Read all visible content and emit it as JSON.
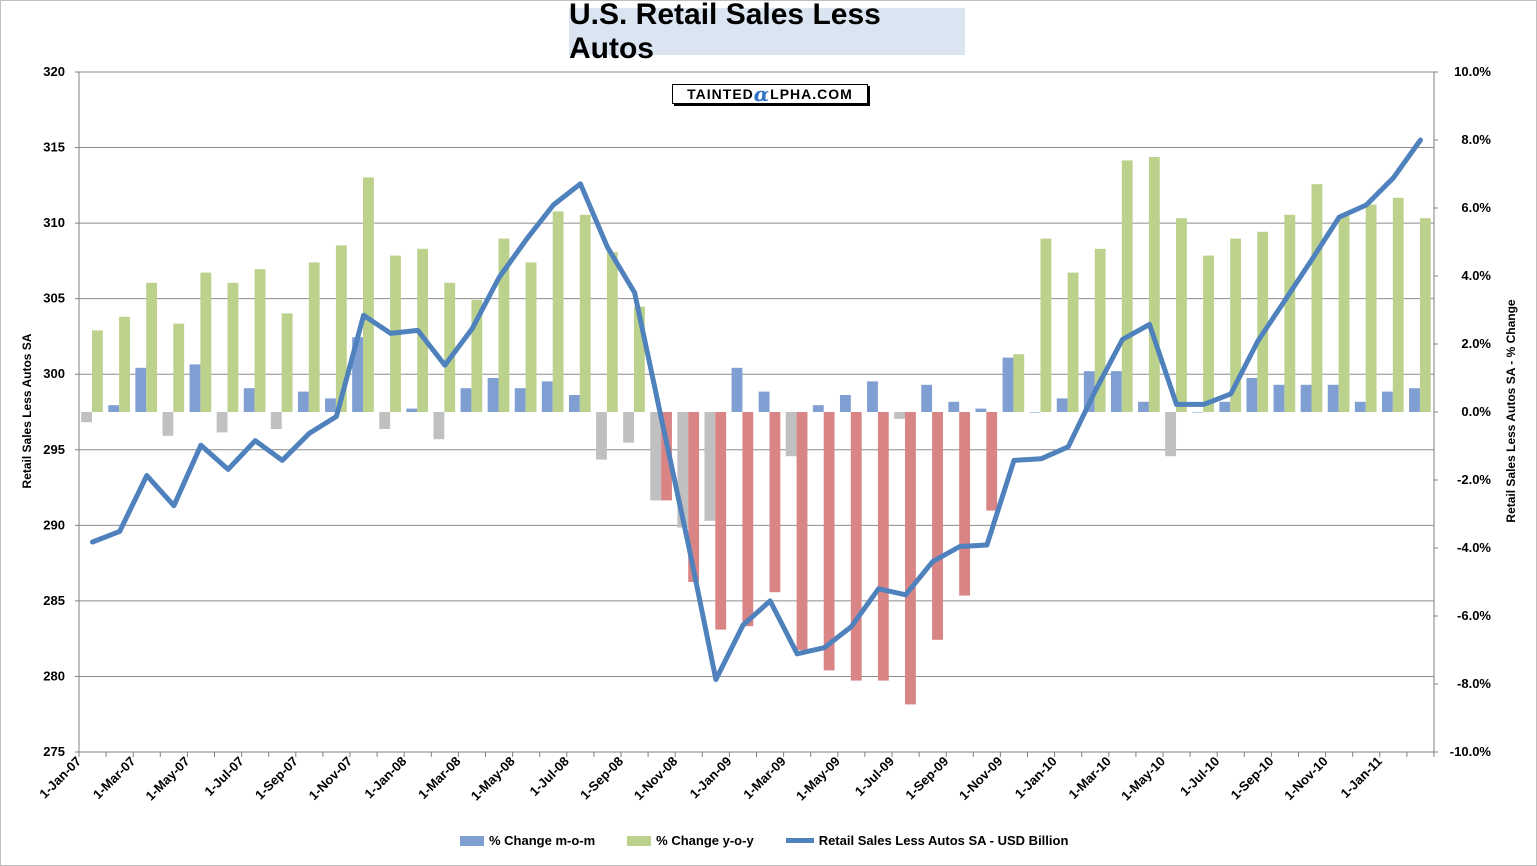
{
  "colors": {
    "mom_bar": "#7f9ed2",
    "yoy_bar": "#bcd18c",
    "mom_neg": "#c0c0c0",
    "yoy_neg": "#d98585",
    "line": "#4f81bd",
    "grid": "#8c8c8c",
    "title_bg": "#dbe5f1"
  },
  "header": {
    "title": "U.S. Retail Sales Less Autos"
  },
  "logo": {
    "prefix": "TAINTED",
    "alpha_glyph": "α",
    "suffix": "LPHA.COM"
  },
  "chart_data": {
    "type": "bar",
    "title": "U.S. Retail Sales Less Autos",
    "ylabel_left": "Retail Sales Less Autos SA",
    "ylabel_right": "Retail Sales Less Autos SA - % Change",
    "ylim_left": [
      275,
      320
    ],
    "ylim_right": [
      -10,
      10
    ],
    "left_ticks": [
      "275",
      "280",
      "285",
      "290",
      "295",
      "300",
      "305",
      "310",
      "315",
      "320"
    ],
    "right_ticks": [
      "-10.0%",
      "-8.0%",
      "-6.0%",
      "-4.0%",
      "-2.0%",
      "0.0%",
      "2.0%",
      "4.0%",
      "6.0%",
      "8.0%",
      "10.0%"
    ],
    "x_tick_labels": [
      "1-Jan-07",
      "1-Mar-07",
      "1-May-07",
      "1-Jul-07",
      "1-Sep-07",
      "1-Nov-07",
      "1-Jan-08",
      "1-Mar-08",
      "1-May-08",
      "1-Jul-08",
      "1-Sep-08",
      "1-Nov-08",
      "1-Jan-09",
      "1-Mar-09",
      "1-May-09",
      "1-Jul-09",
      "1-Sep-09",
      "1-Nov-09",
      "1-Jan-10",
      "1-Mar-10",
      "1-May-10",
      "1-Jul-10",
      "1-Sep-10",
      "1-Nov-10",
      "1-Jan-11"
    ],
    "categories": [
      "Jan-07",
      "Feb-07",
      "Mar-07",
      "Apr-07",
      "May-07",
      "Jun-07",
      "Jul-07",
      "Aug-07",
      "Sep-07",
      "Oct-07",
      "Nov-07",
      "Dec-07",
      "Jan-08",
      "Feb-08",
      "Mar-08",
      "Apr-08",
      "May-08",
      "Jun-08",
      "Jul-08",
      "Aug-08",
      "Sep-08",
      "Oct-08",
      "Nov-08",
      "Dec-08",
      "Jan-09",
      "Feb-09",
      "Mar-09",
      "Apr-09",
      "May-09",
      "Jun-09",
      "Jul-09",
      "Aug-09",
      "Sep-09",
      "Oct-09",
      "Nov-09",
      "Dec-09",
      "Jan-10",
      "Feb-10",
      "Mar-10",
      "Apr-10",
      "May-10",
      "Jun-10",
      "Jul-10",
      "Aug-10",
      "Sep-10",
      "Oct-10",
      "Nov-10",
      "Dec-10",
      "Jan-11",
      "Feb-11"
    ],
    "series": [
      {
        "name": "% Change m-o-m",
        "kind": "bar",
        "axis": "right",
        "values": [
          -0.3,
          0.2,
          1.3,
          -0.7,
          1.4,
          -0.6,
          0.7,
          -0.5,
          0.6,
          0.4,
          2.2,
          -0.5,
          0.1,
          -0.8,
          0.7,
          1.0,
          0.7,
          0.9,
          0.5,
          -1.4,
          -0.9,
          -2.6,
          -3.4,
          -3.2,
          1.3,
          0.6,
          -1.3,
          0.2,
          0.5,
          0.9,
          -0.2,
          0.8,
          0.3,
          0.1,
          1.6,
          0.0,
          0.4,
          1.2,
          1.2,
          0.3,
          -1.3,
          0.0,
          0.3,
          1.0,
          0.8,
          0.8,
          0.8,
          0.3,
          0.6,
          0.7
        ]
      },
      {
        "name": "% Change y-o-y",
        "kind": "bar",
        "axis": "right",
        "values": [
          2.4,
          2.8,
          3.8,
          2.6,
          4.1,
          3.8,
          4.2,
          2.9,
          4.4,
          4.9,
          6.9,
          4.6,
          4.8,
          3.8,
          3.3,
          5.1,
          4.4,
          5.9,
          5.8,
          4.7,
          3.1,
          -2.6,
          -5.0,
          -6.4,
          -6.3,
          -5.3,
          -7.0,
          -7.6,
          -7.9,
          -7.9,
          -8.6,
          -6.7,
          -5.4,
          -2.9,
          1.7,
          5.1,
          4.1,
          4.8,
          7.4,
          7.5,
          5.7,
          4.6,
          5.1,
          5.3,
          5.8,
          6.7,
          5.8,
          6.1,
          6.3,
          5.7
        ]
      },
      {
        "name": "Retail Sales Less Autos SA - USD Billion",
        "kind": "line",
        "axis": "left",
        "values": [
          288.9,
          289.6,
          293.3,
          291.3,
          295.3,
          293.7,
          295.6,
          294.3,
          296.1,
          297.2,
          303.9,
          302.7,
          302.9,
          300.6,
          303.0,
          306.4,
          308.9,
          311.2,
          312.6,
          308.4,
          305.4,
          297.0,
          288.6,
          279.8,
          283.4,
          285.0,
          281.5,
          281.9,
          283.3,
          285.8,
          285.4,
          287.6,
          288.6,
          288.7,
          294.3,
          294.4,
          295.2,
          298.9,
          302.3,
          303.3,
          298.0,
          298.0,
          298.7,
          302.2,
          304.9,
          307.6,
          310.4,
          311.2,
          313.0,
          315.5
        ]
      }
    ],
    "grid": true,
    "legend": "bottom"
  }
}
